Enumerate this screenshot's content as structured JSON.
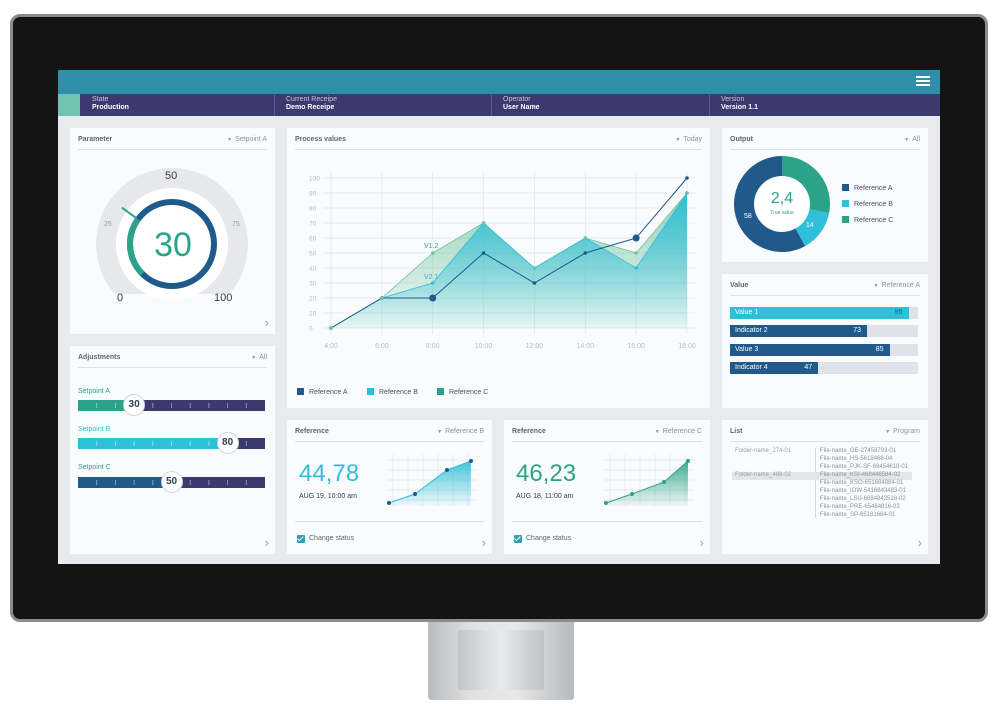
{
  "header": {
    "state_label": "State",
    "state_value": "Production",
    "receipe_label": "Current Receipe",
    "receipe_value": "Demo Receipe",
    "operator_label": "Operator",
    "operator_value": "User Name",
    "version_label": "Version",
    "version_value": "Version 1.1"
  },
  "colors": {
    "teal": "#2aa389",
    "cyan": "#2fbfd8",
    "navy": "#1f5a8a",
    "header": "#2f8ea8",
    "statusbar": "#3b3a6e",
    "green_accent": "#6fc3b1"
  },
  "icons": {
    "menu": "hamburger-menu-icon",
    "chevron": "chevron-right-icon",
    "dropdown": "triangle-down-icon"
  },
  "parameter": {
    "title": "Parameter",
    "filter": "Setpoint A",
    "value": "30",
    "scale": [
      "0",
      "25",
      "50",
      "75",
      "100"
    ],
    "level_percent": 30
  },
  "adjustments": {
    "title": "Adjustments",
    "filter": "All",
    "sliders": [
      {
        "label": "Setpoint A",
        "value": "30",
        "percent": 30
      },
      {
        "label": "Setpoint B",
        "value": "80",
        "percent": 80
      },
      {
        "label": "Setpoint C",
        "value": "50",
        "percent": 50
      }
    ]
  },
  "process": {
    "title": "Process values",
    "filter": "Today",
    "legend": [
      "Reference A",
      "Reference B",
      "Reference C"
    ],
    "annotations": [
      "V1.2",
      "V2.1"
    ]
  },
  "chart_data": [
    {
      "type": "area",
      "x": [
        "4:00",
        "6:00",
        "8:00",
        "10:00",
        "12:00",
        "14:00",
        "16:00",
        "18:00"
      ],
      "xlabel": "",
      "ylabel": "",
      "ylim": [
        0,
        100
      ],
      "yticks": [
        "0",
        "10",
        "20",
        "30",
        "40",
        "50",
        "60",
        "70",
        "80",
        "90",
        "100"
      ],
      "grid": true,
      "series": [
        {
          "name": "Reference A",
          "values": [
            0,
            20,
            20,
            50,
            30,
            50,
            60,
            100
          ]
        },
        {
          "name": "Reference B",
          "values": [
            0,
            20,
            30,
            70,
            40,
            60,
            40,
            90
          ]
        },
        {
          "name": "Reference C",
          "values": [
            0,
            20,
            50,
            70,
            40,
            60,
            50,
            90
          ]
        }
      ]
    },
    {
      "type": "donut",
      "values": [
        58,
        14,
        28
      ],
      "labels": [
        "58",
        "14",
        ""
      ],
      "legend": [
        "Reference A",
        "Reference B",
        "Reference C"
      ],
      "center_value": "2,4",
      "center_label": "True value"
    }
  ],
  "output": {
    "title": "Output",
    "filter": "All",
    "center_value": "2,4",
    "center_label": "True value",
    "slice_a": "58",
    "slice_b": "14",
    "legend": [
      "Reference A",
      "Reference B",
      "Reference C"
    ]
  },
  "value_panel": {
    "title": "Value",
    "filter": "Reference A",
    "bars": [
      {
        "label": "Value 1",
        "value": "95",
        "percent": 95
      },
      {
        "label": "Indicator 2",
        "value": "73",
        "percent": 73
      },
      {
        "label": "Value 3",
        "value": "85",
        "percent": 85
      },
      {
        "label": "Indicator 4",
        "value": "47",
        "percent": 47
      }
    ]
  },
  "reference_b": {
    "title": "Reference",
    "filter": "Reference B",
    "value": "44,78",
    "date": "AUG 19, 10:00 am",
    "checkbox_label": "Change status"
  },
  "reference_c": {
    "title": "Reference",
    "filter": "Reference C",
    "value": "46,23",
    "date": "AUG 18, 11:00 am",
    "checkbox_label": "Change status"
  },
  "list_panel": {
    "title": "List",
    "filter": "Program",
    "folders": [
      "Folder-name_274-01",
      "Folder-name_468-02"
    ],
    "files": [
      "File-name_GE-27458793-01",
      "File-name_HS-5618468-04",
      "File-name_PJK-SF-69454618-01",
      "File-name_KSI-468446584-02",
      "File-name_KSO-651684884-01",
      "File-name_IOW-5416843483-01",
      "File-name_LSU-6684843518-02",
      "File-name_PRE-65484816-03",
      "File-name_SP-65181684-01"
    ]
  }
}
